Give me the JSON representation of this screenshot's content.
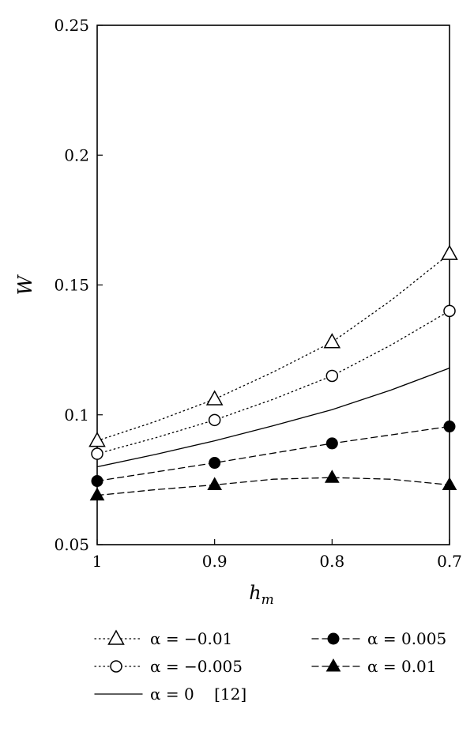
{
  "chart_data": {
    "type": "line",
    "title": "",
    "xlabel": "h",
    "xlabel_sub": "m",
    "ylabel": "W",
    "x": [
      1,
      0.9,
      0.8,
      0.7
    ],
    "xticks": [
      "1",
      "0.9",
      "0.8",
      "0.7"
    ],
    "xlim": [
      1,
      0.7
    ],
    "x_reversed": true,
    "ylim": [
      0.05,
      0.25
    ],
    "yticks": [
      "0.25",
      "0.2",
      "0.15",
      "0.1",
      "0.05"
    ],
    "ytick_values": [
      0.25,
      0.2,
      0.15,
      0.1,
      0.05
    ],
    "grid": false,
    "legend_position": "bottom",
    "series": [
      {
        "name": "α = −0.01",
        "marker": "open-triangle",
        "linestyle": "dotted",
        "values": [
          0.09,
          0.106,
          0.128,
          0.162
        ],
        "curve": [
          [
            1,
            0.09
          ],
          [
            0.95,
            0.0975
          ],
          [
            0.9,
            0.106
          ],
          [
            0.85,
            0.1165
          ],
          [
            0.8,
            0.128
          ],
          [
            0.75,
            0.144
          ],
          [
            0.7,
            0.162
          ]
        ]
      },
      {
        "name": "α = −0.005",
        "marker": "open-circle",
        "linestyle": "dotted",
        "values": [
          0.085,
          0.098,
          0.115,
          0.14
        ],
        "curve": [
          [
            1,
            0.085
          ],
          [
            0.95,
            0.0912
          ],
          [
            0.9,
            0.098
          ],
          [
            0.85,
            0.106
          ],
          [
            0.8,
            0.115
          ],
          [
            0.75,
            0.1268
          ],
          [
            0.7,
            0.14
          ]
        ]
      },
      {
        "name": "α = 0    [12]",
        "marker": "none",
        "linestyle": "solid",
        "values": [
          0.08,
          0.09,
          0.102,
          0.118
        ],
        "curve": [
          [
            1,
            0.08
          ],
          [
            0.95,
            0.0848
          ],
          [
            0.9,
            0.09
          ],
          [
            0.85,
            0.0958
          ],
          [
            0.8,
            0.102
          ],
          [
            0.75,
            0.1095
          ],
          [
            0.7,
            0.118
          ]
        ]
      },
      {
        "name": "α = 0.005",
        "marker": "filled-circle",
        "linestyle": "dashed",
        "values": [
          0.0745,
          0.0815,
          0.089,
          0.0955
        ],
        "curve": [
          [
            1,
            0.0745
          ],
          [
            0.9,
            0.0815
          ],
          [
            0.8,
            0.089
          ],
          [
            0.7,
            0.0955
          ]
        ]
      },
      {
        "name": "α = 0.01",
        "marker": "filled-triangle",
        "linestyle": "dashed",
        "values": [
          0.069,
          0.073,
          0.0758,
          0.073
        ],
        "curve": [
          [
            1,
            0.069
          ],
          [
            0.95,
            0.0712
          ],
          [
            0.9,
            0.073
          ],
          [
            0.85,
            0.0752
          ],
          [
            0.8,
            0.0758
          ],
          [
            0.75,
            0.0752
          ],
          [
            0.7,
            0.073
          ]
        ]
      }
    ]
  }
}
